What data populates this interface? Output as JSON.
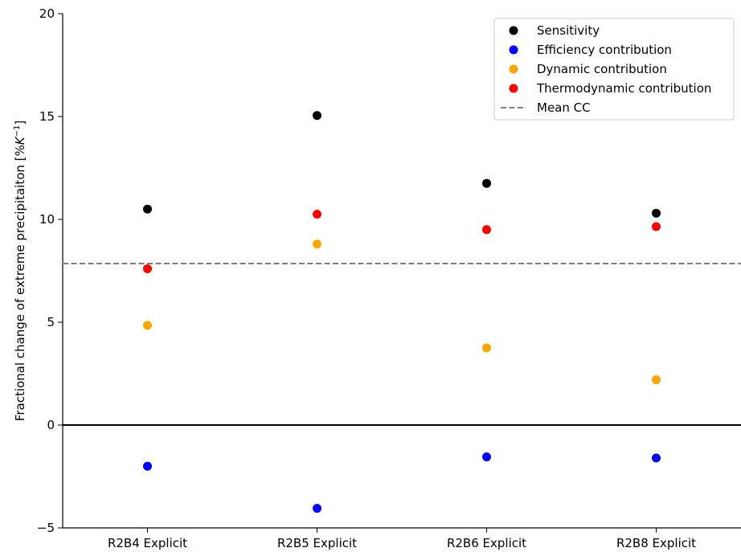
{
  "chart_data": {
    "type": "scatter",
    "categories": [
      "R2B4 Explicit",
      "R2B5 Explicit",
      "R2B6 Explicit",
      "R2B8 Explicit"
    ],
    "ylabel_main": "Fractional change of extreme precipitaiton [%",
    "ylabel_unit": "K",
    "ylabel_exp": "−1",
    "ylabel_close": "]",
    "ylim": [
      -5,
      20
    ],
    "yticks": [
      -5,
      0,
      5,
      10,
      15,
      20
    ],
    "ytick_labels": [
      "−5",
      "0",
      "5",
      "10",
      "15",
      "20"
    ],
    "series": [
      {
        "name": "Sensitivity",
        "color": "#000000",
        "values": [
          10.5,
          15.05,
          11.75,
          10.3
        ]
      },
      {
        "name": "Efficiency contribution",
        "color": "#0000ff",
        "values": [
          -2.0,
          -4.05,
          -1.55,
          -1.6
        ]
      },
      {
        "name": "Dynamic contribution",
        "color": "#ffa500",
        "values": [
          4.85,
          8.8,
          3.75,
          2.2
        ]
      },
      {
        "name": "Thermodynamic contribution",
        "color": "#ff0000",
        "values": [
          7.6,
          10.25,
          9.5,
          9.65
        ]
      }
    ],
    "mean_cc": {
      "name": "Mean CC",
      "value": 7.85,
      "color": "#808080",
      "style": "dashed"
    },
    "zero_line": {
      "value": 0,
      "color": "#000000"
    },
    "legend_position": "top-right",
    "grid": false
  }
}
